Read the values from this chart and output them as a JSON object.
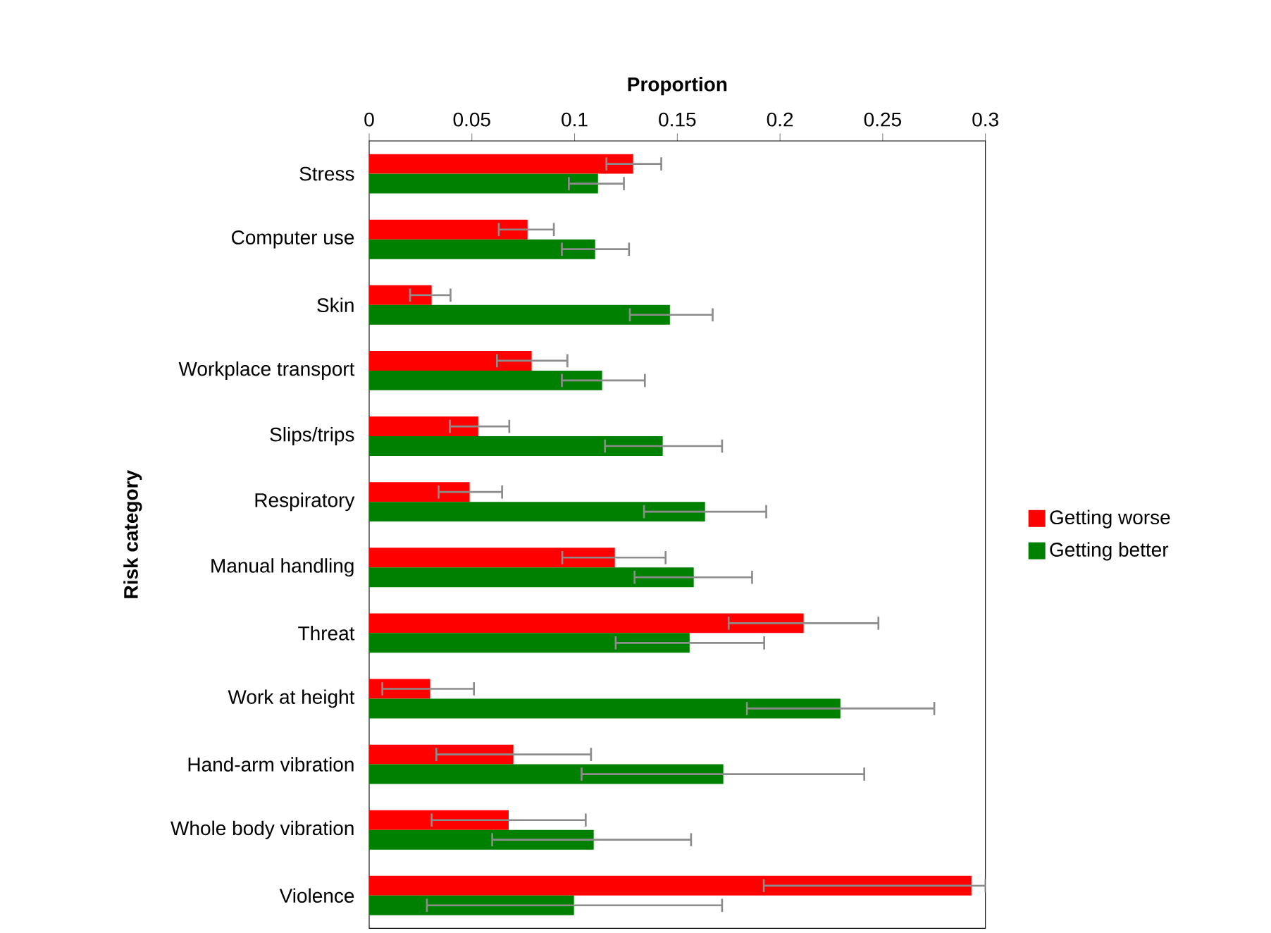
{
  "chart_data": {
    "type": "bar",
    "orientation": "horizontal",
    "xlabel": "Proportion",
    "ylabel": "Risk category",
    "categories": [
      "Stress",
      "Computer use",
      "Skin",
      "Workplace transport",
      "Slips/trips",
      "Respiratory",
      "Manual handling",
      "Threat",
      "Work at height",
      "Hand-arm vibration",
      "Whole body vibration",
      "Violence"
    ],
    "series": [
      {
        "name": "Getting worse",
        "color": "#ff0000",
        "values": [
          0.1285,
          0.0771,
          0.0304,
          0.0791,
          0.0531,
          0.0489,
          0.1196,
          0.2115,
          0.0297,
          0.0702,
          0.0679,
          0.2932
        ],
        "errors": [
          [
            0.1155,
            0.1422
          ],
          [
            0.0631,
            0.0899
          ],
          [
            0.0199,
            0.0396
          ],
          [
            0.0622,
            0.0965
          ],
          [
            0.0393,
            0.0682
          ],
          [
            0.0338,
            0.0647
          ],
          [
            0.094,
            0.1443
          ],
          [
            0.175,
            0.2479
          ],
          [
            0.0064,
            0.051
          ],
          [
            0.0327,
            0.108
          ],
          [
            0.0304,
            0.1054
          ],
          [
            0.1921,
            0.3
          ]
        ]
      },
      {
        "name": "Getting better",
        "color": "#008000",
        "values": [
          0.1114,
          0.11,
          0.1464,
          0.1134,
          0.1429,
          0.1635,
          0.158,
          0.156,
          0.2294,
          0.1724,
          0.1093,
          0.0997
        ],
        "errors": [
          [
            0.0972,
            0.124
          ],
          [
            0.0938,
            0.1265
          ],
          [
            0.1269,
            0.1672
          ],
          [
            0.0938,
            0.1342
          ],
          [
            0.1148,
            0.1718
          ],
          [
            0.1338,
            0.1933
          ],
          [
            0.1292,
            0.1864
          ],
          [
            0.12,
            0.1923
          ],
          [
            0.1839,
            0.2751
          ],
          [
            0.1034,
            0.241
          ],
          [
            0.0599,
            0.1567
          ],
          [
            0.0281,
            0.1718
          ]
        ]
      }
    ],
    "xlim": [
      0,
      0.3
    ],
    "xticks": [
      0,
      0.05,
      0.1,
      0.15,
      0.2,
      0.25,
      0.3
    ],
    "grid": false,
    "legend": "right"
  }
}
